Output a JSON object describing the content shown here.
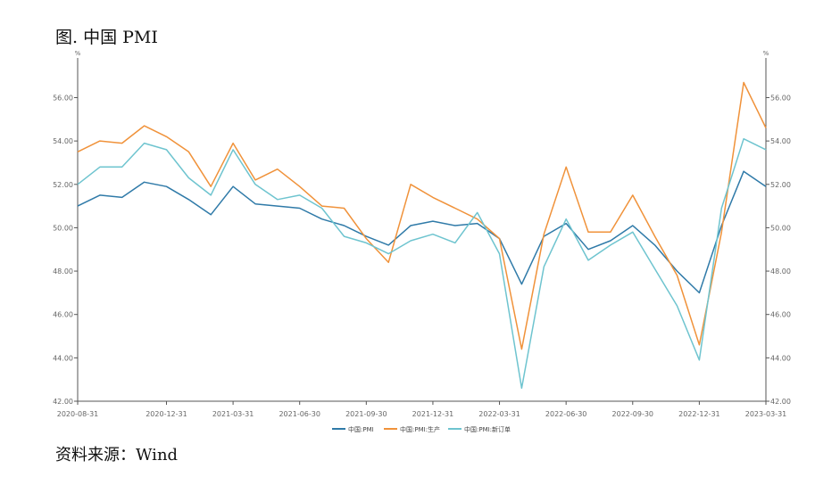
{
  "figure": {
    "title": "图. 中国 PMI",
    "source": "资料来源：Wind"
  },
  "chart_data": {
    "type": "line",
    "title": "图. 中国 PMI",
    "unit_left": "%",
    "unit_right": "%",
    "x": [
      "2020-08-31",
      "2020-09-30",
      "2020-10-31",
      "2020-11-30",
      "2020-12-31",
      "2021-01-31",
      "2021-02-28",
      "2021-03-31",
      "2021-04-30",
      "2021-05-31",
      "2021-06-30",
      "2021-07-31",
      "2021-08-31",
      "2021-09-30",
      "2021-10-31",
      "2021-11-30",
      "2021-12-31",
      "2022-01-31",
      "2022-02-28",
      "2022-03-31",
      "2022-04-30",
      "2022-05-31",
      "2022-06-30",
      "2022-07-31",
      "2022-08-31",
      "2022-09-30",
      "2022-10-31",
      "2022-11-30",
      "2022-12-31",
      "2023-01-31",
      "2023-02-28",
      "2023-03-31"
    ],
    "x_tick_labels": [
      "2020-08-31",
      "2020-12-31",
      "2021-03-31",
      "2021-06-30",
      "2021-09-30",
      "2021-12-31",
      "2022-03-31",
      "2022-06-30",
      "2022-09-30",
      "2022-12-31",
      "2023-03-31"
    ],
    "ylim": [
      42,
      57.5
    ],
    "y_ticks": [
      "42.00",
      "44.00",
      "46.00",
      "48.00",
      "50.00",
      "52.00",
      "54.00",
      "56.00"
    ],
    "series": [
      {
        "name": "中国:PMI",
        "color": "#2f7aa8",
        "values": [
          51.0,
          51.5,
          51.4,
          52.1,
          51.9,
          51.3,
          50.6,
          51.9,
          51.1,
          51.0,
          50.9,
          50.4,
          50.1,
          49.6,
          49.2,
          50.1,
          50.3,
          50.1,
          50.2,
          49.5,
          47.4,
          49.6,
          50.2,
          49.0,
          49.4,
          50.1,
          49.2,
          48.0,
          47.0,
          50.1,
          52.6,
          51.9
        ]
      },
      {
        "name": "中国:PMI:生产",
        "color": "#f0923a",
        "values": [
          53.5,
          54.0,
          53.9,
          54.7,
          54.2,
          53.5,
          51.9,
          53.9,
          52.2,
          52.7,
          51.9,
          51.0,
          50.9,
          49.5,
          48.4,
          52.0,
          51.4,
          50.9,
          50.4,
          49.5,
          44.4,
          49.7,
          52.8,
          49.8,
          49.8,
          51.5,
          49.6,
          47.8,
          44.6,
          49.8,
          56.7,
          54.6
        ]
      },
      {
        "name": "中国:PMI:新订单",
        "color": "#6ec4cf",
        "values": [
          52.0,
          52.8,
          52.8,
          53.9,
          53.6,
          52.3,
          51.5,
          53.6,
          52.0,
          51.3,
          51.5,
          50.9,
          49.6,
          49.3,
          48.8,
          49.4,
          49.7,
          49.3,
          50.7,
          48.8,
          42.6,
          48.2,
          50.4,
          48.5,
          49.2,
          49.8,
          48.1,
          46.4,
          43.9,
          50.9,
          54.1,
          53.6
        ]
      }
    ],
    "legend_position": "bottom-center",
    "grid": false
  }
}
